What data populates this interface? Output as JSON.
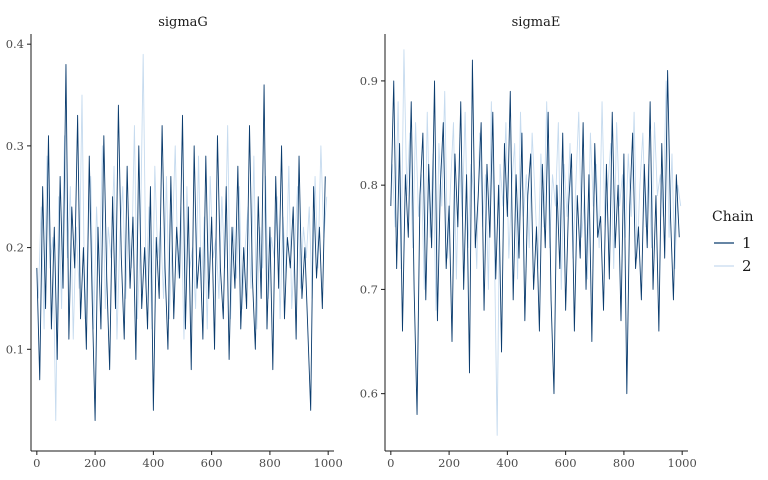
{
  "chart_data": {
    "type": "line",
    "legend": {
      "title": "Chain",
      "position": "right",
      "entries": [
        {
          "label": "1",
          "color": "#0b3c6e"
        },
        {
          "label": "2",
          "color": "#c6dbef"
        }
      ]
    },
    "panels": [
      {
        "title": "sigmaG",
        "xlim": [
          -20,
          1020
        ],
        "ylim": [
          0.0,
          0.41
        ],
        "xticks": [
          0,
          200,
          400,
          600,
          800,
          1000
        ],
        "yticks": [
          0.1,
          0.2,
          0.3,
          0.4
        ],
        "ytick_labels": [
          "0.1",
          "0.2",
          "0.3",
          "0.4"
        ],
        "series": [
          {
            "name": "1",
            "color": "#0b3c6e",
            "x_start": 0,
            "x_step": 10,
            "values": [
              0.18,
              0.07,
              0.26,
              0.14,
              0.31,
              0.12,
              0.22,
              0.09,
              0.27,
              0.16,
              0.38,
              0.11,
              0.24,
              0.18,
              0.33,
              0.13,
              0.2,
              0.1,
              0.29,
              0.15,
              0.03,
              0.22,
              0.12,
              0.31,
              0.17,
              0.08,
              0.25,
              0.14,
              0.34,
              0.19,
              0.11,
              0.28,
              0.16,
              0.23,
              0.09,
              0.3,
              0.14,
              0.2,
              0.12,
              0.26,
              0.04,
              0.21,
              0.15,
              0.32,
              0.18,
              0.1,
              0.27,
              0.13,
              0.22,
              0.17,
              0.33,
              0.12,
              0.24,
              0.08,
              0.3,
              0.16,
              0.2,
              0.11,
              0.29,
              0.15,
              0.23,
              0.1,
              0.31,
              0.18,
              0.13,
              0.26,
              0.09,
              0.22,
              0.16,
              0.28,
              0.12,
              0.2,
              0.14,
              0.32,
              0.17,
              0.1,
              0.25,
              0.15,
              0.36,
              0.12,
              0.22,
              0.08,
              0.27,
              0.16,
              0.3,
              0.13,
              0.21,
              0.18,
              0.24,
              0.11,
              0.29,
              0.15,
              0.2,
              0.12,
              0.04,
              0.26,
              0.17,
              0.22,
              0.14,
              0.27
            ]
          },
          {
            "name": "2",
            "color": "#c6dbef",
            "x_start": 5,
            "x_step": 10,
            "values": [
              0.15,
              0.24,
              0.12,
              0.29,
              0.18,
              0.21,
              0.03,
              0.25,
              0.14,
              0.31,
              0.19,
              0.26,
              0.11,
              0.22,
              0.16,
              0.35,
              0.13,
              0.2,
              0.27,
              0.12,
              0.24,
              0.17,
              0.3,
              0.14,
              0.22,
              0.19,
              0.28,
              0.11,
              0.21,
              0.26,
              0.15,
              0.23,
              0.18,
              0.32,
              0.13,
              0.2,
              0.39,
              0.16,
              0.24,
              0.12,
              0.28,
              0.19,
              0.22,
              0.15,
              0.27,
              0.13,
              0.21,
              0.3,
              0.17,
              0.24,
              0.11,
              0.26,
              0.18,
              0.2,
              0.14,
              0.29,
              0.16,
              0.23,
              0.12,
              0.27,
              0.19,
              0.21,
              0.15,
              0.25,
              0.18,
              0.32,
              0.13,
              0.22,
              0.17,
              0.26,
              0.14,
              0.2,
              0.24,
              0.16,
              0.29,
              0.12,
              0.22,
              0.18,
              0.27,
              0.15,
              0.21,
              0.19,
              0.25,
              0.13,
              0.23,
              0.17,
              0.28,
              0.14,
              0.2,
              0.26,
              0.16,
              0.22,
              0.19,
              0.24,
              0.15,
              0.27,
              0.18,
              0.3,
              0.21,
              0.25
            ]
          }
        ]
      },
      {
        "title": "sigmaE",
        "xlim": [
          -20,
          1020
        ],
        "ylim": [
          0.545,
          0.945
        ],
        "xticks": [
          0,
          200,
          400,
          600,
          800,
          1000
        ],
        "yticks": [
          0.6,
          0.7,
          0.8,
          0.9
        ],
        "ytick_labels": [
          "0.6",
          "0.7",
          "0.8",
          "0.9"
        ],
        "series": [
          {
            "name": "1",
            "color": "#0b3c6e",
            "x_start": 0,
            "x_step": 10,
            "values": [
              0.78,
              0.9,
              0.72,
              0.84,
              0.66,
              0.81,
              0.75,
              0.88,
              0.7,
              0.58,
              0.79,
              0.85,
              0.69,
              0.82,
              0.74,
              0.9,
              0.67,
              0.8,
              0.86,
              0.72,
              0.78,
              0.65,
              0.83,
              0.76,
              0.88,
              0.7,
              0.81,
              0.62,
              0.92,
              0.74,
              0.79,
              0.86,
              0.68,
              0.82,
              0.75,
              0.87,
              0.71,
              0.8,
              0.64,
              0.84,
              0.77,
              0.89,
              0.69,
              0.81,
              0.73,
              0.85,
              0.67,
              0.79,
              0.83,
              0.7,
              0.76,
              0.66,
              0.82,
              0.74,
              0.87,
              0.69,
              0.6,
              0.8,
              0.72,
              0.85,
              0.68,
              0.78,
              0.83,
              0.66,
              0.79,
              0.73,
              0.86,
              0.7,
              0.81,
              0.65,
              0.84,
              0.75,
              0.77,
              0.68,
              0.82,
              0.71,
              0.87,
              0.74,
              0.8,
              0.67,
              0.83,
              0.6,
              0.78,
              0.85,
              0.72,
              0.76,
              0.69,
              0.82,
              0.74,
              0.88,
              0.7,
              0.79,
              0.66,
              0.84,
              0.73,
              0.91,
              0.77,
              0.69,
              0.81,
              0.75
            ]
          },
          {
            "name": "2",
            "color": "#c6dbef",
            "x_start": 5,
            "x_step": 10,
            "values": [
              0.82,
              0.76,
              0.88,
              0.72,
              0.93,
              0.79,
              0.85,
              0.74,
              0.86,
              0.77,
              0.81,
              0.7,
              0.87,
              0.75,
              0.83,
              0.68,
              0.84,
              0.78,
              0.89,
              0.73,
              0.8,
              0.86,
              0.71,
              0.83,
              0.77,
              0.87,
              0.74,
              0.82,
              0.79,
              0.72,
              0.85,
              0.76,
              0.81,
              0.7,
              0.88,
              0.75,
              0.56,
              0.82,
              0.78,
              0.86,
              0.73,
              0.8,
              0.84,
              0.71,
              0.87,
              0.77,
              0.81,
              0.74,
              0.85,
              0.79,
              0.72,
              0.83,
              0.76,
              0.88,
              0.74,
              0.81,
              0.78,
              0.86,
              0.7,
              0.82,
              0.77,
              0.84,
              0.73,
              0.8,
              0.87,
              0.75,
              0.79,
              0.71,
              0.85,
              0.78,
              0.82,
              0.74,
              0.88,
              0.76,
              0.8,
              0.84,
              0.72,
              0.86,
              0.78,
              0.81,
              0.75,
              0.83,
              0.77,
              0.87,
              0.73,
              0.8,
              0.85,
              0.76,
              0.82,
              0.74,
              0.86,
              0.79,
              0.81,
              0.77,
              0.9,
              0.75,
              0.83,
              0.72,
              0.8,
              0.78
            ]
          }
        ]
      }
    ]
  }
}
